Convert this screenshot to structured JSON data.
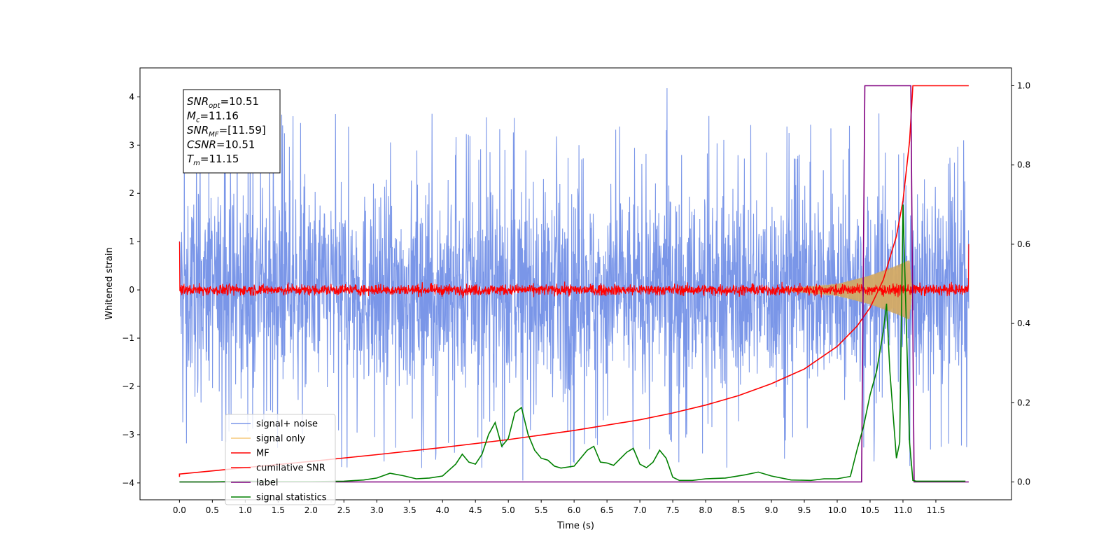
{
  "chart_data": {
    "type": "line",
    "xlabel": "Time (s)",
    "ylabel": "Whitened strain",
    "xlim": [
      -0.6,
      12.65
    ],
    "ylim": [
      -4.35,
      4.6
    ],
    "y2lim": [
      -0.045,
      1.045
    ],
    "xticks": [
      "0.0",
      "0.5",
      "1.0",
      "1.5",
      "2.0",
      "2.5",
      "3.0",
      "3.5",
      "4.0",
      "4.5",
      "5.0",
      "5.5",
      "6.0",
      "6.5",
      "7.0",
      "7.5",
      "8.0",
      "8.5",
      "9.0",
      "9.5",
      "10.0",
      "10.5",
      "11.0",
      "11.5"
    ],
    "yticks": [
      "−4",
      "−3",
      "−2",
      "−1",
      "0",
      "1",
      "2",
      "3",
      "4"
    ],
    "y2ticks": [
      "0.0",
      "0.2",
      "0.4",
      "0.6",
      "0.8",
      "1.0"
    ],
    "annotation": [
      {
        "sym": "SNR",
        "sub": "opt",
        "val": "=10.51"
      },
      {
        "sym": "M",
        "sub": "c",
        "val": "=11.16"
      },
      {
        "sym": "SNR",
        "sub": "MF",
        "val": "=[11.59]"
      },
      {
        "sym": "CSNR",
        "sub": "",
        "val": "=10.51"
      },
      {
        "sym": "T",
        "sub": "m",
        "val": "=11.15"
      }
    ],
    "legend_position": "lower-left",
    "legend": [
      {
        "label": "signal+ noise",
        "color": "#7a96e8"
      },
      {
        "label": "signal only",
        "color": "#f5c97a"
      },
      {
        "label": "MF",
        "color": "#ff0000"
      },
      {
        "label": "cumilative SNR",
        "color": "#ff0000"
      },
      {
        "label": "label",
        "color": "#800080"
      },
      {
        "label": "signal statistics",
        "color": "#008000"
      }
    ],
    "series": [
      {
        "name": "signal+ noise",
        "axis": "left",
        "color": "#7a96e8",
        "kind": "noise",
        "x_range": [
          0.0,
          12.0
        ],
        "band": [
          -2.6,
          2.6
        ],
        "spikes_min": -3.95,
        "spikes_max": 4.18
      },
      {
        "name": "signal only",
        "axis": "left",
        "color": "#f5c97a",
        "kind": "chirp",
        "x_range": [
          9.2,
          11.15
        ],
        "envelope": [
          [
            9.2,
            0.02
          ],
          [
            10.0,
            0.12
          ],
          [
            10.5,
            0.3
          ],
          [
            10.9,
            0.5
          ],
          [
            11.1,
            0.62
          ],
          [
            11.14,
            0.0
          ]
        ]
      },
      {
        "name": "MF",
        "axis": "left",
        "color": "#ff0000",
        "kind": "noise",
        "x_range": [
          0.0,
          12.0
        ],
        "band": [
          -0.15,
          0.15
        ],
        "edges": [
          1.0,
          0.95
        ]
      },
      {
        "name": "cumilative SNR",
        "axis": "right",
        "color": "#ff0000",
        "x": [
          0.0,
          0.0,
          0.5,
          1.0,
          2.0,
          3.0,
          4.0,
          5.0,
          6.0,
          7.0,
          7.5,
          8.0,
          8.5,
          9.0,
          9.5,
          10.0,
          10.3,
          10.5,
          10.7,
          10.9,
          11.0,
          11.1,
          11.15,
          12.0
        ],
        "y": [
          0.013,
          0.02,
          0.028,
          0.036,
          0.052,
          0.069,
          0.087,
          0.107,
          0.13,
          0.157,
          0.174,
          0.194,
          0.218,
          0.248,
          0.285,
          0.342,
          0.393,
          0.44,
          0.51,
          0.62,
          0.71,
          0.86,
          1.0,
          1.0
        ]
      },
      {
        "name": "label",
        "axis": "right",
        "color": "#800080",
        "x": [
          0.0,
          10.37,
          10.42,
          11.12,
          11.17,
          12.0
        ],
        "y": [
          0.0,
          0.0,
          1.0,
          1.0,
          0.0,
          0.0
        ]
      },
      {
        "name": "signal statistics",
        "axis": "right",
        "color": "#008000",
        "x": [
          0.0,
          0.5,
          1.0,
          1.5,
          2.0,
          2.5,
          2.8,
          3.0,
          3.2,
          3.4,
          3.6,
          3.8,
          4.0,
          4.2,
          4.3,
          4.4,
          4.5,
          4.6,
          4.7,
          4.8,
          4.9,
          5.0,
          5.1,
          5.2,
          5.3,
          5.4,
          5.5,
          5.6,
          5.7,
          5.8,
          6.0,
          6.2,
          6.3,
          6.4,
          6.5,
          6.6,
          6.8,
          6.9,
          7.0,
          7.1,
          7.2,
          7.3,
          7.4,
          7.5,
          7.6,
          7.8,
          8.0,
          8.3,
          8.6,
          8.8,
          9.0,
          9.3,
          9.6,
          9.8,
          10.0,
          10.2,
          10.3,
          10.4,
          10.5,
          10.6,
          10.7,
          10.75,
          10.8,
          10.9,
          10.95,
          11.0,
          11.05,
          11.1,
          11.15,
          11.2,
          11.5,
          11.95
        ],
        "y": [
          0.0,
          0.0,
          0.002,
          0.001,
          0.001,
          0.002,
          0.005,
          0.01,
          0.022,
          0.016,
          0.008,
          0.01,
          0.015,
          0.045,
          0.07,
          0.05,
          0.045,
          0.07,
          0.12,
          0.15,
          0.09,
          0.11,
          0.175,
          0.188,
          0.12,
          0.08,
          0.06,
          0.055,
          0.04,
          0.035,
          0.04,
          0.08,
          0.09,
          0.05,
          0.048,
          0.042,
          0.075,
          0.085,
          0.045,
          0.036,
          0.05,
          0.08,
          0.06,
          0.012,
          0.004,
          0.004,
          0.008,
          0.01,
          0.018,
          0.025,
          0.015,
          0.005,
          0.004,
          0.008,
          0.008,
          0.014,
          0.08,
          0.14,
          0.22,
          0.28,
          0.38,
          0.45,
          0.28,
          0.06,
          0.1,
          0.7,
          0.4,
          0.1,
          0.004,
          0.002,
          0.002,
          0.002
        ]
      }
    ]
  }
}
